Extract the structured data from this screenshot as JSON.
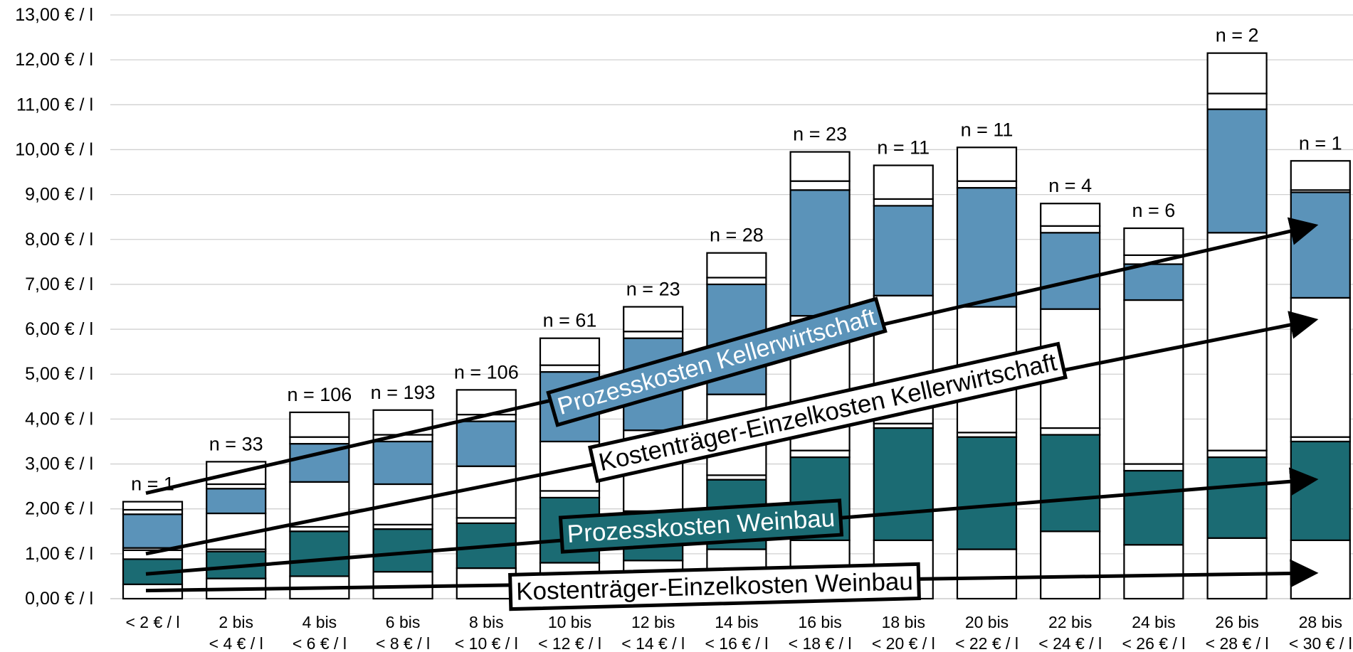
{
  "chart_data": {
    "type": "bar",
    "stacked": true,
    "ylim": [
      0,
      13
    ],
    "grid": true,
    "y_ticks": [
      "0,00 € / l",
      "1,00 € / l",
      "2,00 € / l",
      "3,00 € / l",
      "4,00 € / l",
      "5,00 € / l",
      "6,00 € / l",
      "7,00 € / l",
      "8,00 € / l",
      "9,00 € / l",
      "10,00 € / l",
      "11,00 € / l",
      "12,00 € / l",
      "13,00 € / l"
    ],
    "categories": [
      [
        "< 2 € / l",
        ""
      ],
      [
        "2 bis",
        "< 4 € / l"
      ],
      [
        "4 bis",
        "< 6 € / l"
      ],
      [
        "6 bis",
        "< 8 € / l"
      ],
      [
        "8 bis",
        "< 10 € / l"
      ],
      [
        "10 bis",
        "< 12 € / l"
      ],
      [
        "12 bis",
        "< 14 € / l"
      ],
      [
        "14 bis",
        "< 16 € / l"
      ],
      [
        "16 bis",
        "< 18 € / l"
      ],
      [
        "18 bis",
        "< 20 € / l"
      ],
      [
        "20 bis",
        "< 22 € / l"
      ],
      [
        "22 bis",
        "< 24 € / l"
      ],
      [
        "24 bis",
        "< 26 € / l"
      ],
      [
        "26 bis",
        "< 28 € / l"
      ],
      [
        "28 bis",
        "< 30 € / l"
      ]
    ],
    "n_labels": [
      "n = 1",
      "n = 33",
      "n = 106",
      "n = 193",
      "n = 106",
      "n = 61",
      "n = 23",
      "n = 28",
      "n = 23",
      "n = 11",
      "n = 11",
      "n = 4",
      "n = 6",
      "n = 2",
      "n = 1"
    ],
    "segment_colors": [
      "#ffffff",
      "#1b6b73",
      "#ffffff",
      "#ffffff",
      "#5b93b9",
      "#ffffff",
      "#ffffff"
    ],
    "stacks": [
      [
        0.32,
        0.56,
        0.2,
        0.05,
        0.75,
        0.1,
        0.18
      ],
      [
        0.45,
        0.6,
        0.05,
        0.8,
        0.55,
        0.1,
        0.5
      ],
      [
        0.5,
        1.0,
        0.1,
        1.0,
        0.85,
        0.15,
        0.55
      ],
      [
        0.6,
        0.95,
        0.1,
        0.9,
        0.95,
        0.15,
        0.55
      ],
      [
        0.68,
        1.0,
        0.12,
        1.15,
        1.0,
        0.15,
        0.55
      ],
      [
        0.8,
        1.45,
        0.15,
        1.1,
        1.55,
        0.15,
        0.6
      ],
      [
        0.85,
        1.0,
        0.1,
        1.8,
        2.05,
        0.15,
        0.55
      ],
      [
        1.1,
        1.55,
        0.1,
        1.8,
        2.45,
        0.15,
        0.55
      ],
      [
        1.3,
        1.85,
        0.15,
        3.0,
        2.8,
        0.2,
        0.65
      ],
      [
        1.3,
        2.5,
        0.1,
        2.85,
        2.0,
        0.15,
        0.75
      ],
      [
        1.1,
        2.5,
        0.1,
        2.8,
        2.65,
        0.15,
        0.75
      ],
      [
        1.5,
        2.15,
        0.15,
        2.65,
        1.7,
        0.15,
        0.5
      ],
      [
        1.2,
        1.65,
        0.15,
        3.65,
        0.8,
        0.2,
        0.6
      ],
      [
        1.35,
        1.8,
        0.15,
        4.85,
        2.75,
        0.35,
        0.9
      ],
      [
        1.3,
        2.2,
        0.1,
        3.1,
        2.35,
        0.05,
        0.65
      ]
    ],
    "trend_lines": [
      {
        "from": 2.35,
        "to": 8.3
      },
      {
        "from": 1.0,
        "to": 6.2
      },
      {
        "from": 0.55,
        "to": 2.65
      },
      {
        "from": 0.18,
        "to": 0.57
      }
    ],
    "annotations": [
      {
        "label": "Prozesskosten Kellerwirtschaft",
        "style": "blue"
      },
      {
        "label": "Kostenträger-Einzelkosten Kellerwirtschaft",
        "style": "white"
      },
      {
        "label": "Prozesskosten Weinbau",
        "style": "teal"
      },
      {
        "label": "Kostenträger-Einzelkosten Weinbau",
        "style": "white"
      }
    ]
  }
}
